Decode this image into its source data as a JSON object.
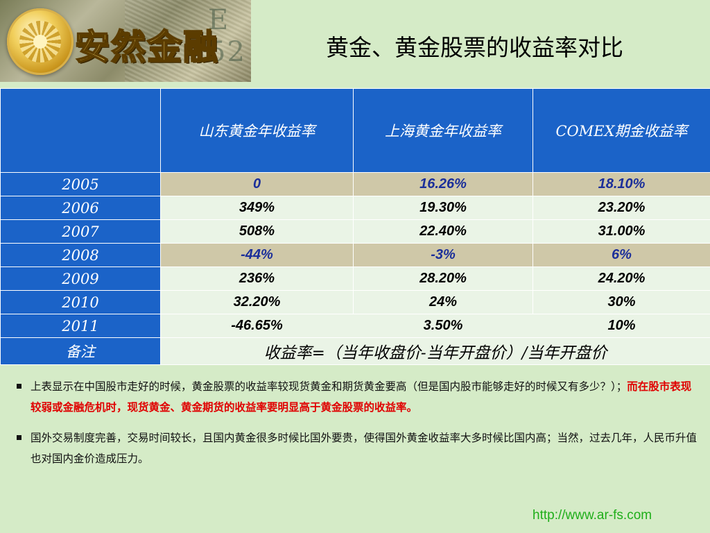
{
  "logo": {
    "brand_text": "安然金融"
  },
  "title": "黄金、黄金股票的收益率对比",
  "table": {
    "headers": [
      "",
      "山东黄金年收益率",
      "上海黄金年收益率",
      "COMEX期金收益率"
    ],
    "rows": [
      {
        "year": "2005",
        "shandong": "0",
        "shanghai": "16.26%",
        "comex": "18.10%"
      },
      {
        "year": "2006",
        "shandong": "349%",
        "shanghai": "19.30%",
        "comex": "23.20%"
      },
      {
        "year": "2007",
        "shandong": "508%",
        "shanghai": "22.40%",
        "comex": "31.00%"
      },
      {
        "year": "2008",
        "shandong": "-44%",
        "shanghai": "-3%",
        "comex": "6%"
      },
      {
        "year": "2009",
        "shandong": "236%",
        "shanghai": "28.20%",
        "comex": "24.20%"
      },
      {
        "year": "2010",
        "shandong": "32.20%",
        "shanghai": "24%",
        "comex": "30%"
      },
      {
        "year": "2011",
        "shandong": "-46.65%",
        "shanghai": "3.50%",
        "comex": "10%"
      }
    ],
    "note_label": "备注",
    "note_text": "收益率=（当年收盘价-当年开盘价）/当年开盘价"
  },
  "bullets": [
    {
      "text": "上表显示在中国股市走好的时候，黄金股票的收益率较现货黄金和期货黄金要高（但是国内股市能够走好的时候又有多少？）；",
      "highlight": "而在股市表现较弱或金融危机时，现货黄金、黄金期货的收益率要明显高于黄金股票的收益率。"
    },
    {
      "text": "国外交易制度完善，交易时间较长，且国内黄金很多时候比国外要贵，使得国外黄金收益率大多时候比国内高；当然，过去几年，人民币升值也对国内金价造成压力。"
    }
  ],
  "footer_url": "http://www.ar-fs.com",
  "colors": {
    "background": "#d5ebc7",
    "header_blue": "#1b63c8",
    "tan_row": "#cfc8a8",
    "highlight_red": "#e00000",
    "url_green": "#1fae1a"
  }
}
